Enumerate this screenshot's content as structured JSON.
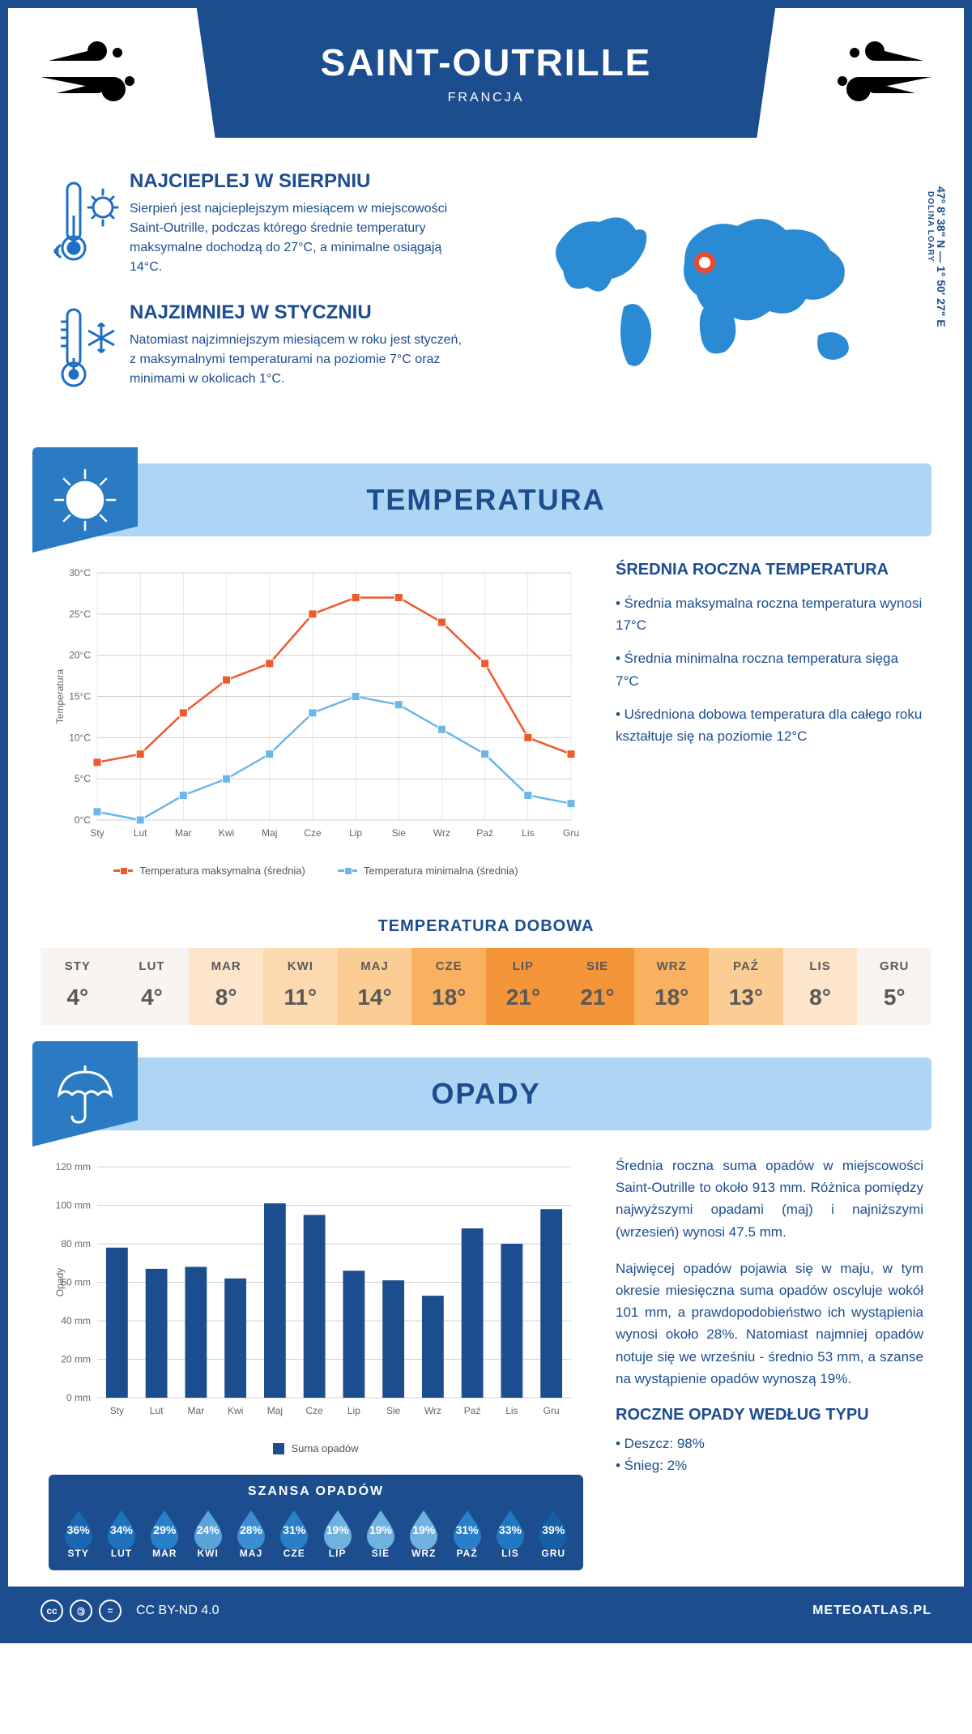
{
  "header": {
    "title": "SAINT-OUTRILLE",
    "subtitle": "FRANCJA"
  },
  "coords": {
    "lat": "47° 8' 38\" N",
    "lon": "1° 50' 27\" E",
    "region": "DOLINA LOARY"
  },
  "facts": {
    "hot": {
      "title": "NAJCIEPLEJ W SIERPNIU",
      "text": "Sierpień jest najcieplejszym miesiącem w miejscowości Saint-Outrille, podczas którego średnie temperatury maksymalne dochodzą do 27°C, a minimalne osiągają 14°C."
    },
    "cold": {
      "title": "NAJZIMNIEJ W STYCZNIU",
      "text": "Natomiast najzimniejszym miesiącem w roku jest styczeń, z maksymalnymi temperaturami na poziomie 7°C oraz minimami w okolicach 1°C."
    }
  },
  "sections": {
    "temperature": "TEMPERATURA",
    "precip": "OPADY"
  },
  "temp_chart": {
    "type": "line",
    "months": [
      "Sty",
      "Lut",
      "Mar",
      "Kwi",
      "Maj",
      "Cze",
      "Lip",
      "Sie",
      "Wrz",
      "Paź",
      "Lis",
      "Gru"
    ],
    "max_series": [
      7,
      8,
      13,
      17,
      19,
      25,
      27,
      27,
      24,
      19,
      10,
      8
    ],
    "min_series": [
      1,
      0,
      3,
      5,
      8,
      13,
      15,
      14,
      11,
      8,
      3,
      2
    ],
    "max_color": "#ec5a2e",
    "min_color": "#6cb6e8",
    "grid_color": "#d0d0d0",
    "axis_color": "#666",
    "ylim": [
      0,
      30
    ],
    "ytick_step": 5,
    "ylabel": "Temperatura",
    "legend_max": "Temperatura maksymalna (średnia)",
    "legend_min": "Temperatura minimalna (średnia)",
    "axis_fontsize": 12,
    "line_width": 2.5,
    "marker_size": 5
  },
  "temp_info": {
    "title": "ŚREDNIA ROCZNA TEMPERATURA",
    "b1": "• Średnia maksymalna roczna temperatura wynosi 17°C",
    "b2": "• Średnia minimalna roczna temperatura sięga 7°C",
    "b3": "• Uśredniona dobowa temperatura dla całego roku kształtuje się na poziomie 12°C"
  },
  "daily": {
    "title": "TEMPERATURA DOBOWA",
    "months": [
      "STY",
      "LUT",
      "MAR",
      "KWI",
      "MAJ",
      "CZE",
      "LIP",
      "SIE",
      "WRZ",
      "PAŹ",
      "LIS",
      "GRU"
    ],
    "values": [
      "4°",
      "4°",
      "8°",
      "11°",
      "14°",
      "18°",
      "21°",
      "21°",
      "18°",
      "13°",
      "8°",
      "5°"
    ],
    "colors": [
      "#f7f4f1",
      "#f7f4f1",
      "#fde5cc",
      "#fdd9b0",
      "#fbcd95",
      "#f9b15f",
      "#f5953a",
      "#f5953a",
      "#f9b15f",
      "#fbcd95",
      "#fde5cc",
      "#f7f4f1"
    ]
  },
  "precip_chart": {
    "type": "bar",
    "months": [
      "Sty",
      "Lut",
      "Mar",
      "Kwi",
      "Maj",
      "Cze",
      "Lip",
      "Sie",
      "Wrz",
      "Paź",
      "Lis",
      "Gru"
    ],
    "values": [
      78,
      67,
      68,
      62,
      101,
      95,
      66,
      61,
      53,
      88,
      80,
      98
    ],
    "bar_color": "#1c4d8f",
    "grid_color": "#d0d0d0",
    "ylim": [
      0,
      120
    ],
    "ytick_step": 20,
    "ylabel": "Opady",
    "legend": "Suma opadów",
    "bar_width": 0.55,
    "axis_fontsize": 12
  },
  "precip_text": {
    "p1": "Średnia roczna suma opadów w miejscowości Saint-Outrille to około 913 mm. Różnica pomiędzy najwyższymi opadami (maj) i najniższymi (wrzesień) wynosi 47.5 mm.",
    "p2": "Najwięcej opadów pojawia się w maju, w tym okresie miesięczna suma opadów oscyluje wokół 101 mm, a prawdopodobieństwo ich wystąpienia wynosi około 28%. Natomiast najmniej opadów notuje się we wrześniu - średnio 53 mm, a szanse na wystąpienie opadów wynoszą 19%.",
    "types_title": "ROCZNE OPADY WEDŁUG TYPU",
    "rain": "• Deszcz: 98%",
    "snow": "• Śnieg: 2%"
  },
  "chance": {
    "title": "SZANSA OPADÓW",
    "months": [
      "STY",
      "LUT",
      "MAR",
      "KWI",
      "MAJ",
      "CZE",
      "LIP",
      "SIE",
      "WRZ",
      "PAŹ",
      "LIS",
      "GRU"
    ],
    "values": [
      "36%",
      "34%",
      "29%",
      "24%",
      "28%",
      "31%",
      "19%",
      "19%",
      "19%",
      "31%",
      "33%",
      "39%"
    ],
    "colors": [
      "#1867b0",
      "#1f72bd",
      "#2980c9",
      "#5ba3d8",
      "#3a8dd0",
      "#2980c9",
      "#6fb1df",
      "#6fb1df",
      "#6fb1df",
      "#2980c9",
      "#2178c2",
      "#1560a5"
    ]
  },
  "footer": {
    "license": "CC BY-ND 4.0",
    "site": "METEOATLAS.PL"
  }
}
